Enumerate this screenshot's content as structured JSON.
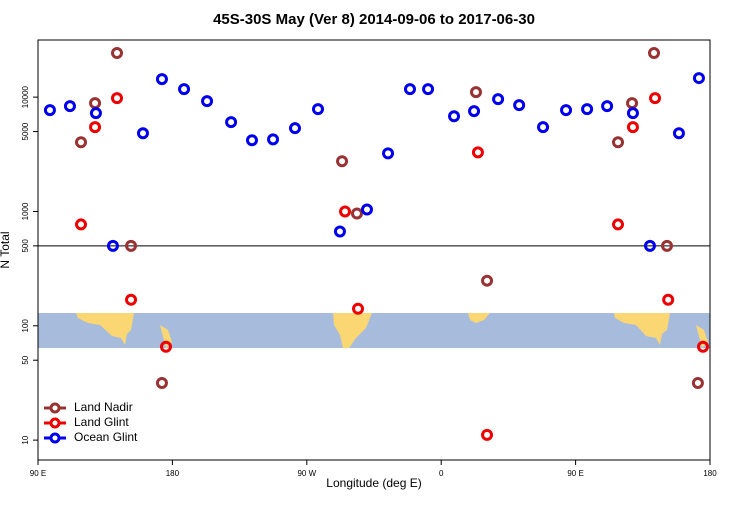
{
  "chart_data": {
    "type": "scatter",
    "title": "45S-30S May (Ver 8)   2014-09-06 to 2017-06-30",
    "x_label": "Longitude (deg E)",
    "y_label": "N Total",
    "log_y": true,
    "legend": "bottom-left",
    "hline": 500,
    "xlim": [
      90,
      540
    ],
    "ylim": [
      6.7,
      31600
    ],
    "xticks": [
      {
        "value": 90,
        "label": "90 E"
      },
      {
        "value": 180,
        "label": "180"
      },
      {
        "value": 270,
        "label": "90 W"
      },
      {
        "value": 360,
        "label": "0"
      },
      {
        "value": 450,
        "label": "90 E"
      },
      {
        "value": 540,
        "label": "180"
      }
    ],
    "yticks": [
      10,
      50,
      100,
      500,
      1000,
      5000,
      10000
    ],
    "series": [
      {
        "name": "Land Nadir",
        "color": "#993333",
        "x": [
          118.8,
          128.2,
          142.9,
          152.3,
          173.0,
          293.6,
          303.6,
          383.3,
          390.7,
          478.4,
          487.8,
          502.5,
          511.2,
          531.9
        ],
        "values": [
          4030,
          8860,
          24300,
          500,
          31.6,
          2750,
          960,
          11060,
          248,
          4030,
          8860,
          24300,
          500,
          31.6
        ]
      },
      {
        "name": "Land Glint",
        "color": "#ee0000",
        "x": [
          118.8,
          128.2,
          142.9,
          152.3,
          175.7,
          295.6,
          304.3,
          384.6,
          390.7,
          478.4,
          488.4,
          503.2,
          512.0,
          535.3
        ],
        "values": [
          770,
          5460,
          9800,
          169,
          65.5,
          1000,
          141,
          3290,
          11.1,
          770,
          5460,
          9800,
          169,
          65.5
        ]
      },
      {
        "name": "Ocean Glint",
        "color": "#0000ee",
        "x": [
          98.0,
          111.4,
          128.8,
          140.2,
          160.3,
          173.0,
          187.8,
          203.2,
          219.3,
          233.3,
          247.4,
          262.1,
          277.5,
          292.2,
          310.3,
          324.4,
          339.1,
          351.2,
          368.6,
          382.0,
          398.1,
          412.2,
          428.2,
          443.6,
          457.7,
          471.1,
          488.4,
          499.8,
          519.2,
          532.6
        ],
        "values": [
          7690,
          8340,
          7240,
          500,
          4830,
          14380,
          11750,
          9230,
          6040,
          4200,
          4270,
          5350,
          7850,
          668,
          1040,
          3220,
          11750,
          11750,
          6810,
          7540,
          9600,
          8510,
          5460,
          7690,
          7850,
          8340,
          7240,
          500,
          4830,
          14680
        ]
      }
    ]
  }
}
